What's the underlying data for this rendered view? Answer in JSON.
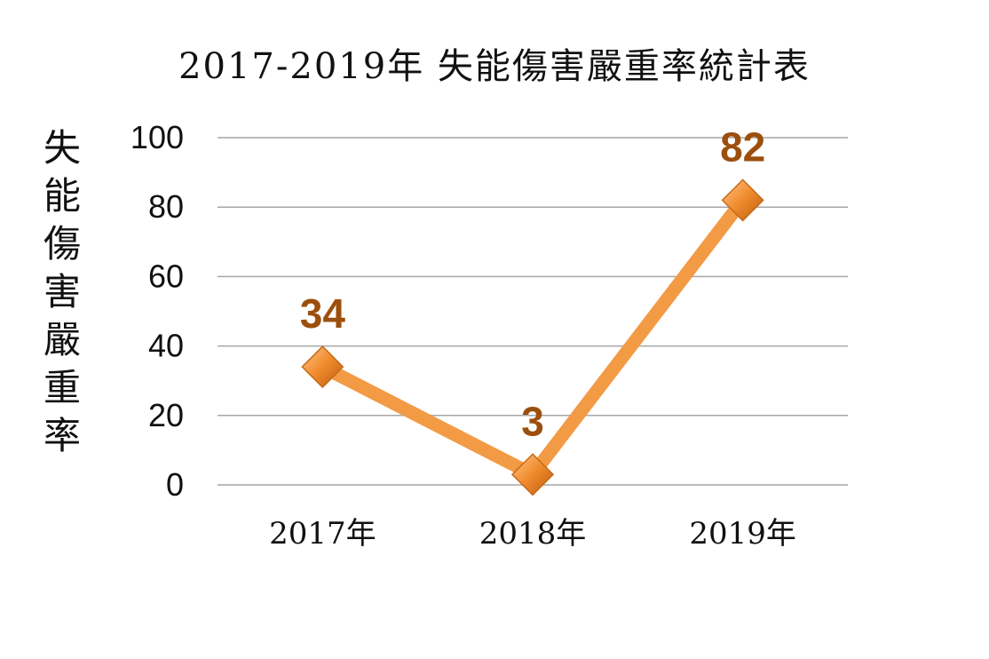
{
  "chart_data": {
    "type": "line",
    "title": "2017-2019年  失能傷害嚴重率統計表",
    "ylabel": "失能傷害嚴重率",
    "xlabel": "",
    "categories": [
      "2017年",
      "2018年",
      "2019年"
    ],
    "series": [
      {
        "values": [
          34,
          3,
          82
        ]
      }
    ],
    "data_labels": [
      "34",
      "3",
      "82"
    ],
    "yticks": [
      "0",
      "20",
      "40",
      "60",
      "80",
      "100"
    ],
    "ylim": [
      0,
      100
    ],
    "grid": true,
    "legend": "none",
    "colors": {
      "line": "#f39a45",
      "marker": "#e8801f",
      "label": "#9c4f0d",
      "grid": "#a6a6a6"
    }
  }
}
